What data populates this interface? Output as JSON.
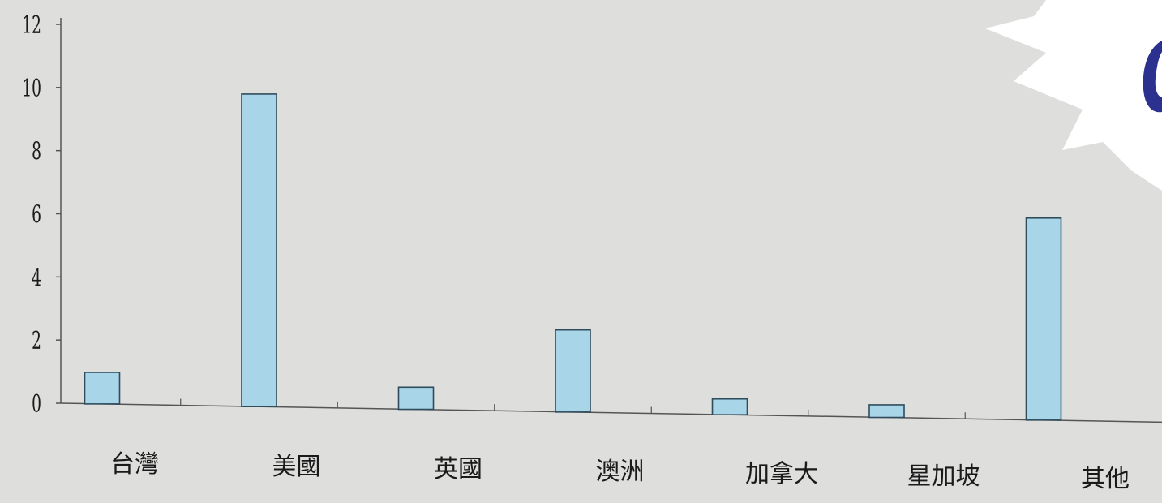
{
  "chart_data": {
    "type": "bar",
    "categories": [
      "台灣",
      "美國",
      "英國",
      "澳洲",
      "加拿大",
      "星加坡",
      "其他"
    ],
    "values": [
      1.0,
      9.9,
      0.7,
      2.6,
      0.5,
      0.4,
      6.4
    ],
    "title": "",
    "xlabel": "",
    "ylabel": "",
    "ylim": [
      0,
      12
    ],
    "yticks": [
      "0",
      "2",
      "4",
      "6",
      "8",
      "10",
      "12"
    ],
    "grid": false,
    "legend": "none",
    "colors": {
      "bar_fill": "#a8d5e8",
      "bar_stroke": "#2e4c5c",
      "axis": "#555555",
      "text": "#1a1a1a",
      "background": "#dededd",
      "burst": "#ffffff",
      "burst_glyph": "#2c3190"
    }
  }
}
